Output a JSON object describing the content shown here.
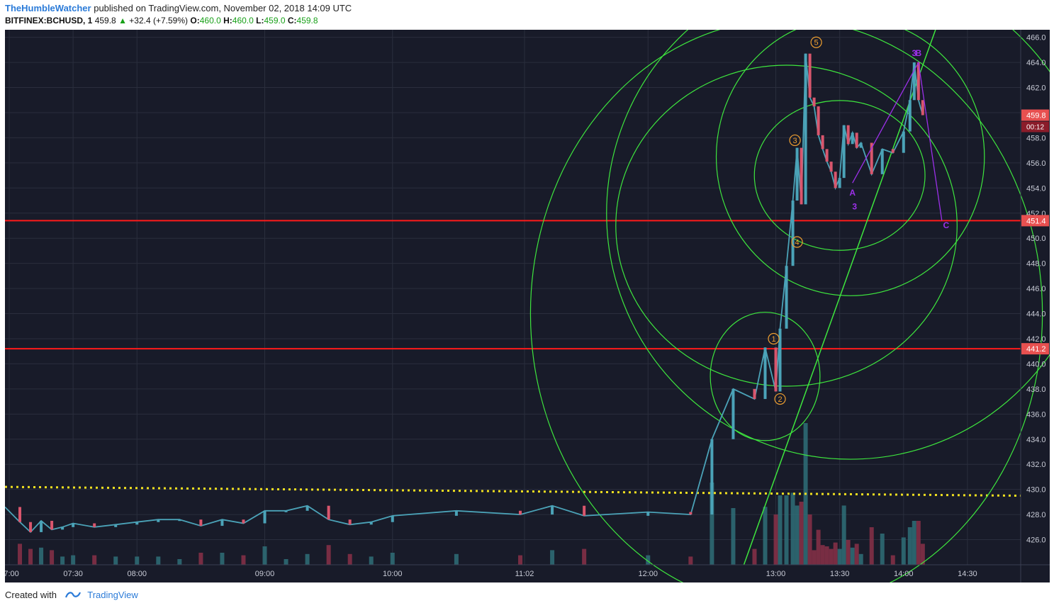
{
  "header": {
    "author": "TheHumbleWatcher",
    "published_text": "published on TradingView.com, November 02, 2018 14:09 UTC",
    "symbol": "BITFINEX:BCHUSD, 1",
    "last": "459.8",
    "change_arrow": "▲",
    "change": "+32.4 (+7.59%)",
    "o_label": "O:",
    "o_value": "460.0",
    "h_label": "H:",
    "h_value": "460.0",
    "l_label": "L:",
    "l_value": "459.0",
    "c_label": "C:",
    "c_value": "459.8"
  },
  "footer": {
    "created_with": "Created with",
    "brand": "TradingView"
  },
  "colors": {
    "background": "#181b29",
    "grid": "#2a2e3d",
    "up_candle": "#4ba3b8",
    "down_candle": "#d9566d",
    "fib_circle": "#3ee63e",
    "support_line": "#ff1a1a",
    "dotted_line": "#f0e020",
    "wave_marker": "#f0a030",
    "abc_label": "#9b30e8",
    "price_tag": "#e85050"
  },
  "chart_data": {
    "type": "line",
    "symbol": "BITFINEX:BCHUSD",
    "interval": "1",
    "x": [
      "06:58",
      "07:05",
      "07:10",
      "07:15",
      "07:20",
      "07:25",
      "07:30",
      "07:40",
      "07:50",
      "08:00",
      "08:10",
      "08:20",
      "08:30",
      "08:40",
      "08:50",
      "09:00",
      "09:10",
      "09:20",
      "09:30",
      "09:40",
      "09:50",
      "10:00",
      "10:30",
      "11:00",
      "11:15",
      "11:30",
      "12:00",
      "12:20",
      "12:30",
      "12:40",
      "12:50",
      "12:55",
      "13:00",
      "13:02",
      "13:05",
      "13:08",
      "13:10",
      "13:12",
      "13:14",
      "13:16",
      "13:18",
      "13:20",
      "13:22",
      "13:24",
      "13:26",
      "13:28",
      "13:30",
      "13:32",
      "13:34",
      "13:36",
      "13:38",
      "13:40",
      "13:45",
      "13:50",
      "13:55",
      "14:00",
      "14:03",
      "14:05",
      "14:07",
      "14:09"
    ],
    "series": [
      {
        "values": [
          428.6,
          427.4,
          426.6,
          427.5,
          426.8,
          427.0,
          427.3,
          427.0,
          427.2,
          427.4,
          427.6,
          427.6,
          427.1,
          427.6,
          427.3,
          428.3,
          428.3,
          428.7,
          427.6,
          427.2,
          427.4,
          427.9,
          428.3,
          428.0,
          428.7,
          427.9,
          428.2,
          428.0,
          434.0,
          438.0,
          437.2,
          441.3,
          437.8,
          442.8,
          447.8,
          453.0,
          457.2,
          452.7,
          464.7,
          461.2,
          460.5,
          458.2,
          457.1,
          456.1,
          455.3,
          454.0,
          454.8,
          459.0,
          457.5,
          458.4,
          457.2,
          457.6,
          455.1,
          457.1,
          456.8,
          458.5,
          461.0,
          464.0,
          461.0,
          459.8
        ]
      }
    ],
    "volume": [
      {
        "time": "12:50",
        "value": "~14% of range"
      }
    ],
    "ylim": [
      424.0,
      466.6
    ],
    "xlim": [
      "06:58",
      "14:55"
    ],
    "y_ticks": [
      "466.0",
      "464.0",
      "462.0",
      "460.0",
      "458.0",
      "456.0",
      "454.0",
      "452.0",
      "450.0",
      "448.0",
      "446.0",
      "444.0",
      "442.0",
      "440.0",
      "438.0",
      "436.0",
      "434.0",
      "432.0",
      "430.0",
      "428.0",
      "426.0"
    ],
    "x_ticks": [
      "07:00",
      "07:30",
      "08:00",
      "09:00",
      "10:00",
      "11:02",
      "12:00",
      "13:00",
      "13:30",
      "14:00",
      "14:30"
    ],
    "price_tags": [
      {
        "value": 459.8,
        "label": "459.8",
        "countdown": "00:12"
      },
      {
        "value": 451.4,
        "label": "451.4"
      },
      {
        "value": 441.2,
        "label": "441.2"
      }
    ],
    "horizontal_lines": [
      {
        "value": 451.4,
        "style": "solid",
        "color": "#ff1a1a"
      },
      {
        "value": 441.2,
        "style": "solid",
        "color": "#ff1a1a"
      },
      {
        "value": 430.2,
        "style": "dotted",
        "color": "#f0e020",
        "end_value": 429.5
      }
    ],
    "wave_labels": [
      {
        "label": "1",
        "time": "12:59",
        "value": 442.0
      },
      {
        "label": "2",
        "time": "13:02",
        "value": 437.2
      },
      {
        "label": "3",
        "time": "13:09",
        "value": 457.8
      },
      {
        "label": "4",
        "time": "13:10",
        "value": 449.7
      },
      {
        "label": "5",
        "time": "13:19",
        "value": 465.6
      }
    ],
    "abc_labels": [
      {
        "label": "A",
        "time": "13:36",
        "value": 453.4
      },
      {
        "label": "3",
        "time": "13:37",
        "value": 452.3
      },
      {
        "label": "3",
        "time": "14:05",
        "value": 464.5
      },
      {
        "label": "B",
        "time": "14:07",
        "value": 464.5
      },
      {
        "label": "C",
        "time": "14:20",
        "value": 450.8
      }
    ],
    "abc_path": [
      {
        "time": "13:36",
        "value": 454.4
      },
      {
        "time": "14:07",
        "value": 464.0
      },
      {
        "time": "14:18",
        "value": 451.4
      }
    ]
  }
}
